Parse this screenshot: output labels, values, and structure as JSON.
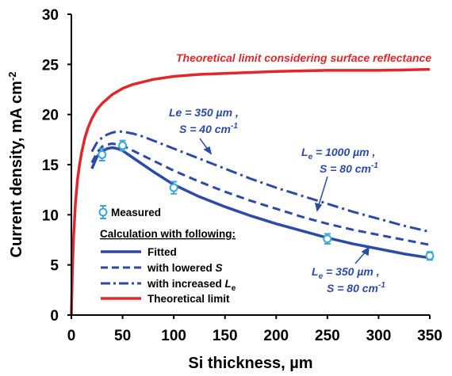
{
  "chart_data": {
    "type": "line",
    "xlabel": "Si thickness, µm",
    "ylabel": "Current density, mA cm",
    "ylabel_sup": "-2",
    "xlim": [
      0,
      350
    ],
    "ylim": [
      0,
      30
    ],
    "x_ticks": [
      0,
      50,
      100,
      150,
      200,
      250,
      300,
      350
    ],
    "y_ticks": [
      0,
      5,
      10,
      15,
      20,
      25,
      30
    ],
    "colors": {
      "blue": "#2c4aa8",
      "red": "#e3262b",
      "measured": "#3aa7d8"
    },
    "series": [
      {
        "name": "Measured",
        "style": "scatter",
        "x": [
          30,
          50,
          100,
          250,
          350
        ],
        "y": [
          16.0,
          16.9,
          12.7,
          7.6,
          5.9
        ],
        "err": [
          0.6,
          0.5,
          0.6,
          0.5,
          0.4
        ]
      },
      {
        "name": "Fitted",
        "style": "solid",
        "x": [
          20,
          25,
          30,
          35,
          40,
          45,
          50,
          60,
          70,
          80,
          100,
          125,
          150,
          175,
          200,
          225,
          250,
          275,
          300,
          325,
          350
        ],
        "y": [
          14.6,
          15.8,
          16.3,
          16.6,
          16.7,
          16.6,
          16.4,
          15.7,
          15.0,
          14.3,
          13.0,
          11.8,
          10.8,
          9.9,
          9.1,
          8.4,
          7.7,
          7.1,
          6.6,
          6.1,
          5.7
        ]
      },
      {
        "name": "with lowered S",
        "style": "dash",
        "x": [
          20,
          25,
          30,
          35,
          40,
          45,
          50,
          60,
          70,
          80,
          100,
          125,
          150,
          175,
          200,
          225,
          250,
          275,
          300,
          325,
          350
        ],
        "y": [
          15.2,
          16.2,
          16.8,
          17.0,
          17.1,
          17.0,
          16.9,
          16.4,
          15.9,
          15.4,
          14.4,
          13.3,
          12.3,
          11.4,
          10.6,
          9.8,
          9.1,
          8.5,
          8.0,
          7.5,
          7.0
        ]
      },
      {
        "name": "with increased L",
        "name_sub": "e",
        "style": "dashdot",
        "x": [
          20,
          25,
          30,
          35,
          40,
          45,
          50,
          60,
          70,
          80,
          100,
          125,
          150,
          175,
          200,
          225,
          250,
          275,
          300,
          325,
          350
        ],
        "y": [
          16.3,
          17.2,
          17.7,
          18.0,
          18.2,
          18.3,
          18.3,
          18.1,
          17.8,
          17.4,
          16.6,
          15.6,
          14.6,
          13.6,
          12.7,
          11.9,
          11.1,
          10.3,
          9.6,
          8.9,
          8.3
        ]
      },
      {
        "name": "Theoretical limit",
        "style": "solid-red",
        "x": [
          0,
          1,
          2,
          4,
          6,
          8,
          10,
          13,
          16,
          20,
          25,
          30,
          40,
          50,
          60,
          80,
          100,
          125,
          150,
          200,
          250,
          300,
          350
        ],
        "y": [
          0,
          4.5,
          7.5,
          11.2,
          13.5,
          15.0,
          16.2,
          17.6,
          18.6,
          19.6,
          20.5,
          21.1,
          22.0,
          22.6,
          23.0,
          23.5,
          23.8,
          24.0,
          24.1,
          24.3,
          24.4,
          24.4,
          24.5
        ]
      }
    ],
    "annotations": {
      "red_title": "Theoretical limit considering surface reflectance",
      "le350_s40_line1": "Le = 350 µm ,",
      "le350_s40_line2_prefix": "S = 40 cm",
      "le350_s40_line2_sup": "-1",
      "le1000_line1_prefix": "L",
      "le1000_line1_sub": "e",
      "le1000_line1_suffix": " = 1000 µm ,",
      "le1000_line2_prefix": "S = 80 cm",
      "le1000_line2_sup": "-1",
      "le350_s80_line1_prefix": "L",
      "le350_s80_line1_sub": "e",
      "le350_s80_line1_suffix": " = 350 µm ,",
      "le350_s80_line2_prefix": "S = 80 cm",
      "le350_s80_line2_sup": "-1"
    },
    "legend": {
      "measured": "Measured",
      "header": "Calculation with following:",
      "fitted": "Fitted",
      "lowered_prefix": "with lowered ",
      "lowered_var": "S",
      "increased_prefix": "with increased ",
      "increased_var": "L",
      "increased_sub": "e",
      "theoretical": "Theoretical limit"
    }
  }
}
